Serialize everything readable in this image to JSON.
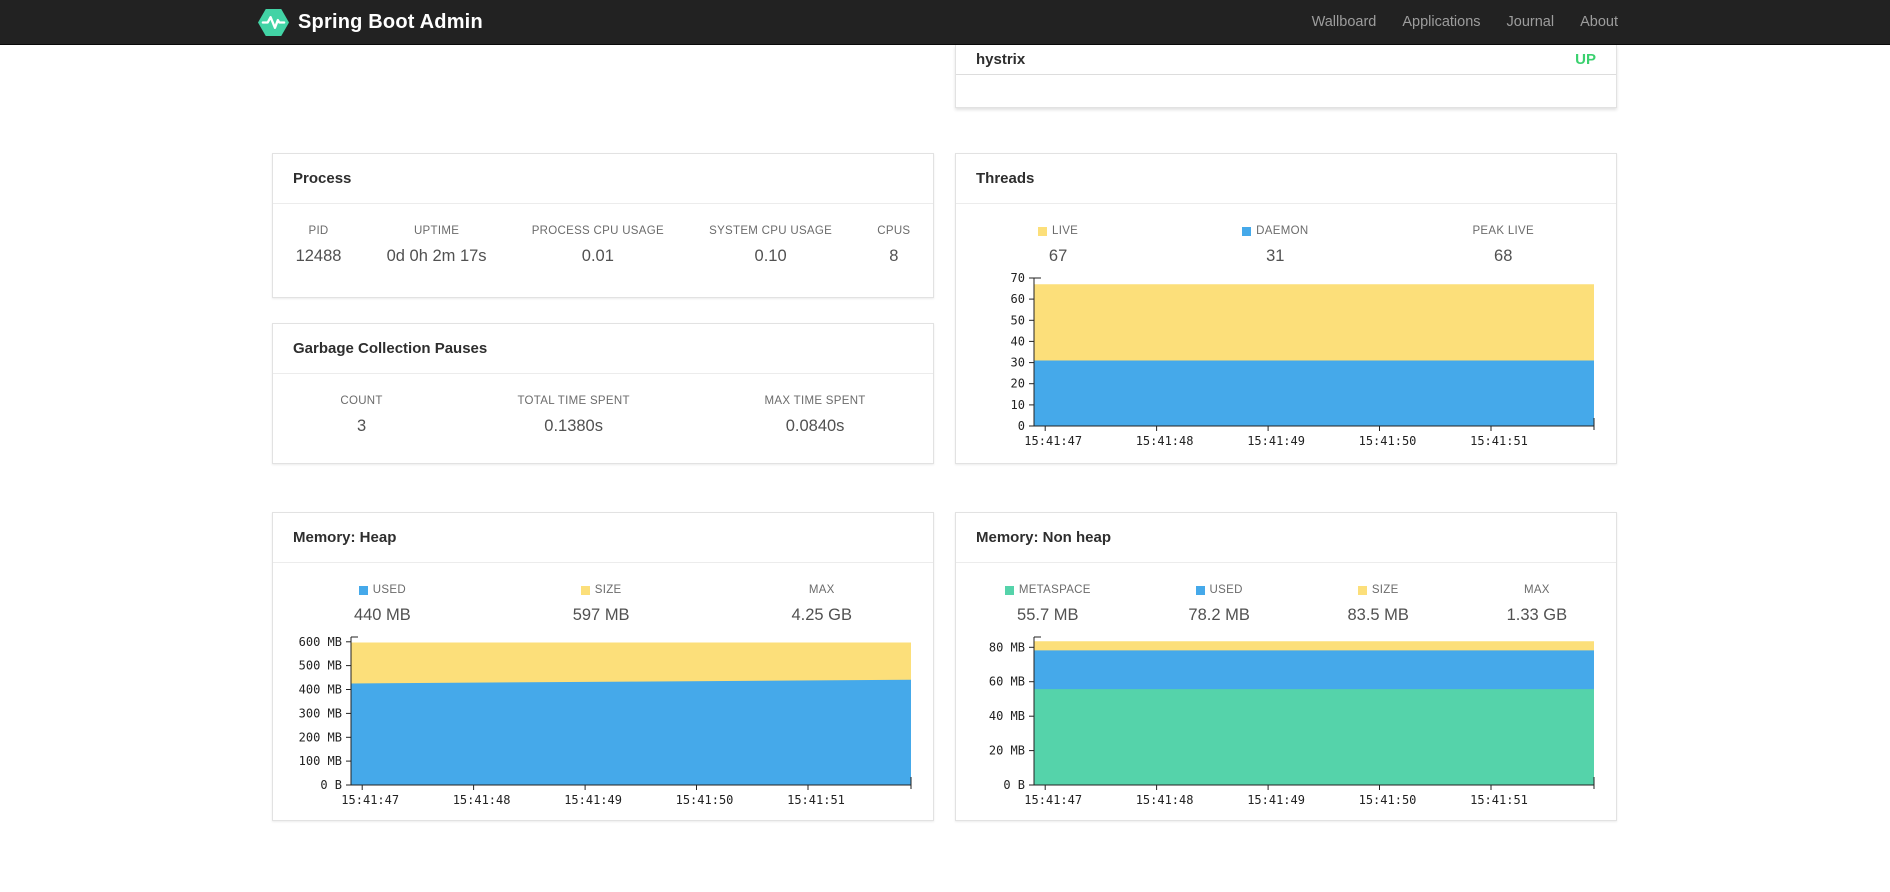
{
  "navbar": {
    "brand": "Spring Boot Admin",
    "links": [
      {
        "label": "Wallboard"
      },
      {
        "label": "Applications"
      },
      {
        "label": "Journal"
      },
      {
        "label": "About"
      }
    ]
  },
  "colors": {
    "navbar_bg": "#222222",
    "brand_green": "#42d3a5",
    "status_up": "#3bd16f",
    "chart_yellow": "#fcdf7a",
    "chart_blue": "#45a9ea",
    "chart_green": "#55d3aa",
    "axis": "#222222"
  },
  "application": {
    "name": "hystrix",
    "status": "UP"
  },
  "process": {
    "title": "Process",
    "stats": [
      {
        "label": "PID",
        "value": "12488"
      },
      {
        "label": "UPTIME",
        "value": "0d 0h 2m 17s"
      },
      {
        "label": "PROCESS CPU USAGE",
        "value": "0.01"
      },
      {
        "label": "SYSTEM CPU USAGE",
        "value": "0.10"
      },
      {
        "label": "CPUS",
        "value": "8"
      }
    ]
  },
  "gc": {
    "title": "Garbage Collection Pauses",
    "stats": [
      {
        "label": "COUNT",
        "value": "3"
      },
      {
        "label": "TOTAL TIME SPENT",
        "value": "0.1380s"
      },
      {
        "label": "MAX TIME SPENT",
        "value": "0.0840s"
      }
    ]
  },
  "threads": {
    "title": "Threads",
    "stats": [
      {
        "label": "LIVE",
        "value": "67",
        "marker": "chart_yellow"
      },
      {
        "label": "DAEMON",
        "value": "31",
        "marker": "chart_blue"
      },
      {
        "label": "PEAK LIVE",
        "value": "68"
      }
    ]
  },
  "memory_heap": {
    "title": "Memory: Heap",
    "stats": [
      {
        "label": "USED",
        "value": "440 MB",
        "marker": "chart_blue"
      },
      {
        "label": "SIZE",
        "value": "597 MB",
        "marker": "chart_yellow"
      },
      {
        "label": "MAX",
        "value": "4.25 GB"
      }
    ]
  },
  "memory_nonheap": {
    "title": "Memory: Non heap",
    "stats": [
      {
        "label": "METASPACE",
        "value": "55.7 MB",
        "marker": "chart_green"
      },
      {
        "label": "USED",
        "value": "78.2 MB",
        "marker": "chart_blue"
      },
      {
        "label": "SIZE",
        "value": "83.5 MB",
        "marker": "chart_yellow"
      },
      {
        "label": "MAX",
        "value": "1.33 GB"
      }
    ]
  },
  "chart_data": [
    {
      "type": "area",
      "title": "Threads",
      "unit": "threads",
      "ylim": [
        0,
        70
      ],
      "yticks": [
        {
          "v": 0,
          "label": "0"
        },
        {
          "v": 10,
          "label": "10"
        },
        {
          "v": 20,
          "label": "20"
        },
        {
          "v": 30,
          "label": "30"
        },
        {
          "v": 40,
          "label": "40"
        },
        {
          "v": 50,
          "label": "50"
        },
        {
          "v": 60,
          "label": "60"
        },
        {
          "v": 70,
          "label": "70"
        }
      ],
      "xticks": [
        {
          "f": 0.02,
          "label": "15:41:47"
        },
        {
          "f": 0.219,
          "label": "15:41:48"
        },
        {
          "f": 0.418,
          "label": "15:41:49"
        },
        {
          "f": 0.617,
          "label": "15:41:50"
        },
        {
          "f": 0.816,
          "label": "15:41:51"
        }
      ],
      "series": [
        {
          "name": "LIVE",
          "color": "chart_yellow",
          "points": [
            {
              "x": 0,
              "y": 67
            },
            {
              "x": 1,
              "y": 67
            }
          ]
        },
        {
          "name": "DAEMON",
          "color": "chart_blue",
          "points": [
            {
              "x": 0,
              "y": 31
            },
            {
              "x": 1,
              "y": 31
            }
          ]
        }
      ]
    },
    {
      "type": "area",
      "title": "Memory: Heap",
      "unit": "MB",
      "ylim": [
        0,
        620
      ],
      "yticks": [
        {
          "v": 0,
          "label": "0 B"
        },
        {
          "v": 100,
          "label": "100 MB"
        },
        {
          "v": 200,
          "label": "200 MB"
        },
        {
          "v": 300,
          "label": "300 MB"
        },
        {
          "v": 400,
          "label": "400 MB"
        },
        {
          "v": 500,
          "label": "500 MB"
        },
        {
          "v": 600,
          "label": "600 MB"
        }
      ],
      "xticks": [
        {
          "f": 0.02,
          "label": "15:41:47"
        },
        {
          "f": 0.219,
          "label": "15:41:48"
        },
        {
          "f": 0.418,
          "label": "15:41:49"
        },
        {
          "f": 0.617,
          "label": "15:41:50"
        },
        {
          "f": 0.816,
          "label": "15:41:51"
        }
      ],
      "series": [
        {
          "name": "SIZE",
          "color": "chart_yellow",
          "points": [
            {
              "x": 0,
              "y": 597
            },
            {
              "x": 1,
              "y": 597
            }
          ]
        },
        {
          "name": "USED",
          "color": "chart_blue",
          "points": [
            {
              "x": 0,
              "y": 425
            },
            {
              "x": 0.5,
              "y": 433
            },
            {
              "x": 1,
              "y": 441
            }
          ]
        }
      ]
    },
    {
      "type": "area",
      "title": "Memory: Non heap",
      "unit": "MB",
      "ylim": [
        0,
        86
      ],
      "yticks": [
        {
          "v": 0,
          "label": "0 B"
        },
        {
          "v": 20,
          "label": "20 MB"
        },
        {
          "v": 40,
          "label": "40 MB"
        },
        {
          "v": 60,
          "label": "60 MB"
        },
        {
          "v": 80,
          "label": "80 MB"
        }
      ],
      "xticks": [
        {
          "f": 0.02,
          "label": "15:41:47"
        },
        {
          "f": 0.219,
          "label": "15:41:48"
        },
        {
          "f": 0.418,
          "label": "15:41:49"
        },
        {
          "f": 0.617,
          "label": "15:41:50"
        },
        {
          "f": 0.816,
          "label": "15:41:51"
        }
      ],
      "series": [
        {
          "name": "SIZE",
          "color": "chart_yellow",
          "points": [
            {
              "x": 0,
              "y": 83.5
            },
            {
              "x": 1,
              "y": 83.5
            }
          ]
        },
        {
          "name": "USED",
          "color": "chart_blue",
          "points": [
            {
              "x": 0,
              "y": 78.2
            },
            {
              "x": 1,
              "y": 78.2
            }
          ]
        },
        {
          "name": "METASPACE",
          "color": "chart_green",
          "points": [
            {
              "x": 0,
              "y": 55.7
            },
            {
              "x": 1,
              "y": 55.7
            }
          ]
        }
      ]
    }
  ]
}
